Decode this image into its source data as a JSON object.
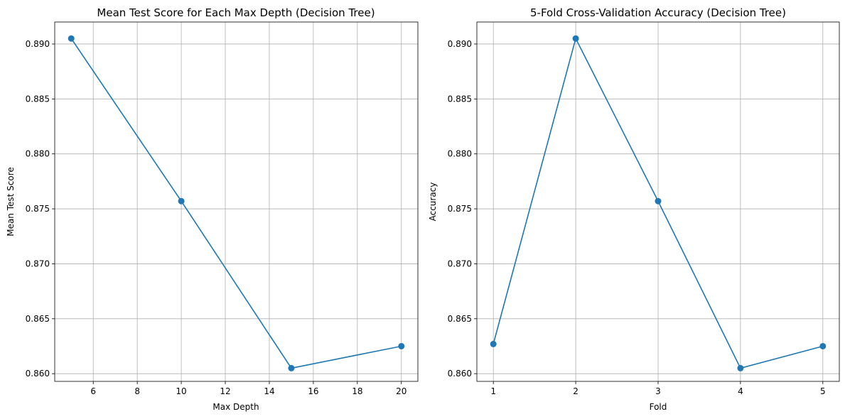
{
  "chart_data": [
    {
      "type": "line",
      "title": "Mean Test Score for Each Max Depth (Decision Tree)",
      "xlabel": "Max Depth",
      "ylabel": "Mean Test Score",
      "x": [
        5,
        10,
        15,
        20
      ],
      "series": [
        {
          "values": [
            0.8905,
            0.8757,
            0.8605,
            0.8625
          ]
        }
      ],
      "xlim": [
        4.25,
        20.75
      ],
      "ylim": [
        0.8593,
        0.892
      ],
      "xticks": [
        6,
        8,
        10,
        12,
        14,
        16,
        18,
        20
      ],
      "xtick_labels": [
        "6",
        "8",
        "10",
        "12",
        "14",
        "16",
        "18",
        "20"
      ],
      "yticks": [
        0.86,
        0.865,
        0.87,
        0.875,
        0.88,
        0.885,
        0.89
      ],
      "ytick_labels": [
        "0.860",
        "0.865",
        "0.870",
        "0.875",
        "0.880",
        "0.885",
        "0.890"
      ],
      "grid": true,
      "marker": "circle",
      "color": "#1f77b4"
    },
    {
      "type": "line",
      "title": "5-Fold Cross-Validation Accuracy (Decision Tree)",
      "xlabel": "Fold",
      "ylabel": "Accuracy",
      "x": [
        1,
        2,
        3,
        4,
        5
      ],
      "series": [
        {
          "values": [
            0.8627,
            0.8905,
            0.8757,
            0.8605,
            0.8625
          ]
        }
      ],
      "xlim": [
        0.8,
        5.2
      ],
      "ylim": [
        0.8593,
        0.892
      ],
      "xticks": [
        1,
        2,
        3,
        4,
        5
      ],
      "xtick_labels": [
        "1",
        "2",
        "3",
        "4",
        "5"
      ],
      "yticks": [
        0.86,
        0.865,
        0.87,
        0.875,
        0.88,
        0.885,
        0.89
      ],
      "ytick_labels": [
        "0.860",
        "0.865",
        "0.870",
        "0.875",
        "0.880",
        "0.885",
        "0.890"
      ],
      "grid": true,
      "marker": "circle",
      "color": "#1f77b4"
    }
  ]
}
